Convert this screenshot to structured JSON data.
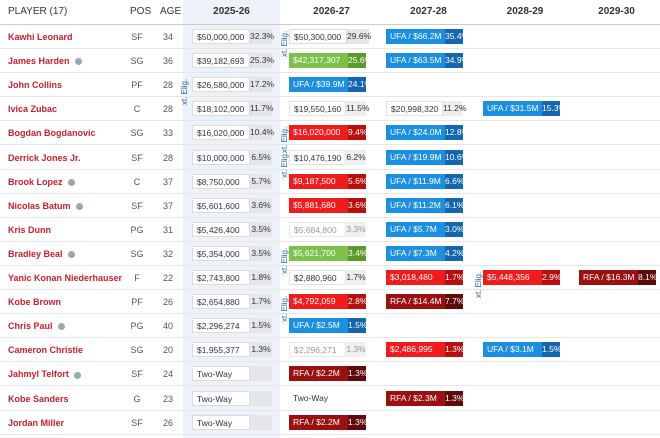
{
  "header": {
    "columns": [
      "PLAYER (17)",
      "POS",
      "AGE",
      "2025-26",
      "2026-27",
      "2027-28",
      "2028-29",
      "2029-30"
    ]
  },
  "rows": [
    {
      "player": "Kawhi Leonard",
      "pos": "SF",
      "age": 34,
      "cells": [
        {
          "amount": "$50,000,000",
          "pct": "32.3%",
          "style": "base"
        },
        {
          "amount": "$50,300,000",
          "pct": "29.6%",
          "style": "base"
        },
        {
          "amount": "UFA / $66.2M",
          "pct": "35.4%",
          "style": "blue"
        },
        null,
        null
      ],
      "ext": {
        "col": 1,
        "label": "xt. Elig."
      }
    },
    {
      "player": "James Harden",
      "pos": "SG",
      "age": 36,
      "badge": true,
      "cells": [
        {
          "amount": "$39,182,693",
          "pct": "25.3%",
          "style": "base"
        },
        {
          "amount": "$42,317,307",
          "pct": "25.6%",
          "style": "green"
        },
        {
          "amount": "UFA / $63.5M",
          "pct": "34.9%",
          "style": "blue"
        },
        null,
        null
      ]
    },
    {
      "player": "John Collins",
      "pos": "PF",
      "age": 28,
      "cells": [
        {
          "amount": "$26,580,000",
          "pct": "17.2%",
          "style": "base"
        },
        {
          "amount": "UFA / $39.9M",
          "pct": "24.1%",
          "style": "blue"
        },
        null,
        null,
        null
      ],
      "ext": {
        "col": 0,
        "label": "xt. Elig."
      }
    },
    {
      "player": "Ivica Zubac",
      "pos": "C",
      "age": 28,
      "cells": [
        {
          "amount": "$18,102,000",
          "pct": "11.7%",
          "style": "base"
        },
        {
          "amount": "$19,550,160",
          "pct": "11.5%",
          "style": "plain"
        },
        {
          "amount": "$20,998,320",
          "pct": "11.2%",
          "style": "plain"
        },
        {
          "amount": "UFA / $31.5M",
          "pct": "15.3%",
          "style": "blue"
        },
        null
      ]
    },
    {
      "player": "Bogdan Bogdanovic",
      "pos": "SG",
      "age": 33,
      "cells": [
        {
          "amount": "$16,020,000",
          "pct": "10.4%",
          "style": "base"
        },
        {
          "amount": "$16,020,000",
          "pct": "9.4%",
          "style": "red"
        },
        {
          "amount": "UFA / $24.0M",
          "pct": "12.8%",
          "style": "blue"
        },
        null,
        null
      ],
      "ext": {
        "col": 1,
        "label": "xt. Elig."
      }
    },
    {
      "player": "Derrick Jones Jr.",
      "pos": "SF",
      "age": 28,
      "cells": [
        {
          "amount": "$10,000,000",
          "pct": "6.5%",
          "style": "base"
        },
        {
          "amount": "$10,476,190",
          "pct": "6.2%",
          "style": "plain"
        },
        {
          "amount": "UFA / $19.9M",
          "pct": "10.6%",
          "style": "blue"
        },
        null,
        null
      ],
      "ext": {
        "col": 1,
        "label": "xt. Elig."
      }
    },
    {
      "player": "Brook Lopez",
      "pos": "C",
      "age": 37,
      "badge": true,
      "cells": [
        {
          "amount": "$8,750,000",
          "pct": "5.7%",
          "style": "base"
        },
        {
          "amount": "$9,187,500",
          "pct": "5.6%",
          "style": "red"
        },
        {
          "amount": "UFA / $11.9M",
          "pct": "6.6%",
          "style": "blue"
        },
        null,
        null
      ]
    },
    {
      "player": "Nicolas Batum",
      "pos": "SF",
      "age": 37,
      "badge": true,
      "cells": [
        {
          "amount": "$5,601,600",
          "pct": "3.6%",
          "style": "base"
        },
        {
          "amount": "$5,881,680",
          "pct": "3.6%",
          "style": "red"
        },
        {
          "amount": "UFA / $11.2M",
          "pct": "6.1%",
          "style": "blue"
        },
        null,
        null
      ]
    },
    {
      "player": "Kris Dunn",
      "pos": "PG",
      "age": 31,
      "cells": [
        {
          "amount": "$5,426,400",
          "pct": "3.5%",
          "style": "base"
        },
        {
          "amount": "$5,684,800",
          "pct": "3.3%",
          "style": "muted"
        },
        {
          "amount": "UFA / $5.7M",
          "pct": "3.0%",
          "style": "blue"
        },
        null,
        null
      ]
    },
    {
      "player": "Bradley Beal",
      "pos": "SG",
      "age": 32,
      "badge": true,
      "cells": [
        {
          "amount": "$5,354,000",
          "pct": "3.5%",
          "style": "base"
        },
        {
          "amount": "$5,621,700",
          "pct": "3.4%",
          "style": "green"
        },
        {
          "amount": "UFA / $7.3M",
          "pct": "4.2%",
          "style": "blue"
        },
        null,
        null
      ],
      "ext": {
        "col": 1,
        "label": "xt. Elig."
      }
    },
    {
      "player": "Yanic Konan Niederhauser",
      "pos": "F",
      "age": 22,
      "cells": [
        {
          "amount": "$2,743,800",
          "pct": "1.8%",
          "style": "base"
        },
        {
          "amount": "$2,880,960",
          "pct": "1.7%",
          "style": "plain"
        },
        {
          "amount": "$3,018,480",
          "pct": "1.7%",
          "style": "red"
        },
        {
          "amount": "$5,448,356",
          "pct": "2.9%",
          "style": "red"
        },
        {
          "amount": "RFA / $16.3M",
          "pct": "8.1%",
          "style": "dark"
        }
      ],
      "ext": {
        "col": 3,
        "label": "xt. Elig."
      }
    },
    {
      "player": "Kobe Brown",
      "pos": "PF",
      "age": 26,
      "cells": [
        {
          "amount": "$2,654,880",
          "pct": "1.7%",
          "style": "base"
        },
        {
          "amount": "$4,792,059",
          "pct": "2.8%",
          "style": "red"
        },
        {
          "amount": "RFA / $14.4M",
          "pct": "7.7%",
          "style": "dark"
        },
        null,
        null
      ],
      "ext": {
        "col": 1,
        "label": "xt. Elig."
      }
    },
    {
      "player": "Chris Paul",
      "pos": "PG",
      "age": 40,
      "badge": true,
      "cells": [
        {
          "amount": "$2,296,274",
          "pct": "1.5%",
          "style": "base"
        },
        {
          "amount": "UFA / $2.5M",
          "pct": "1.5%",
          "style": "blue"
        },
        null,
        null,
        null
      ]
    },
    {
      "player": "Cameron Christie",
      "pos": "SG",
      "age": 20,
      "cells": [
        {
          "amount": "$1,955,377",
          "pct": "1.3%",
          "style": "base"
        },
        {
          "amount": "$2,296,271",
          "pct": "1.3%",
          "style": "muted"
        },
        {
          "amount": "$2,486,995",
          "pct": "1.3%",
          "style": "red"
        },
        {
          "amount": "UFA / $3.1M",
          "pct": "1.5%",
          "style": "blue"
        },
        null
      ]
    },
    {
      "player": "Jahmyl Telfort",
      "pos": "SF",
      "age": 24,
      "badge": true,
      "cells": [
        {
          "amount": "Two-Way",
          "style": "base"
        },
        {
          "amount": "RFA / $2.2M",
          "pct": "1.3%",
          "style": "dark"
        },
        null,
        null,
        null
      ]
    },
    {
      "player": "Kobe Sanders",
      "pos": "G",
      "age": 23,
      "cells": [
        {
          "amount": "Two-Way",
          "style": "base"
        },
        {
          "amount": "Two-Way",
          "style": "text"
        },
        {
          "amount": "RFA / $2.3M",
          "pct": "1.3%",
          "style": "dark"
        },
        null,
        null
      ]
    },
    {
      "player": "Jordan Miller",
      "pos": "SF",
      "age": 26,
      "cells": [
        {
          "amount": "Two-Way",
          "style": "base"
        },
        {
          "amount": "RFA / $2.2M",
          "pct": "1.3%",
          "style": "dark"
        },
        null,
        null,
        null
      ]
    }
  ]
}
